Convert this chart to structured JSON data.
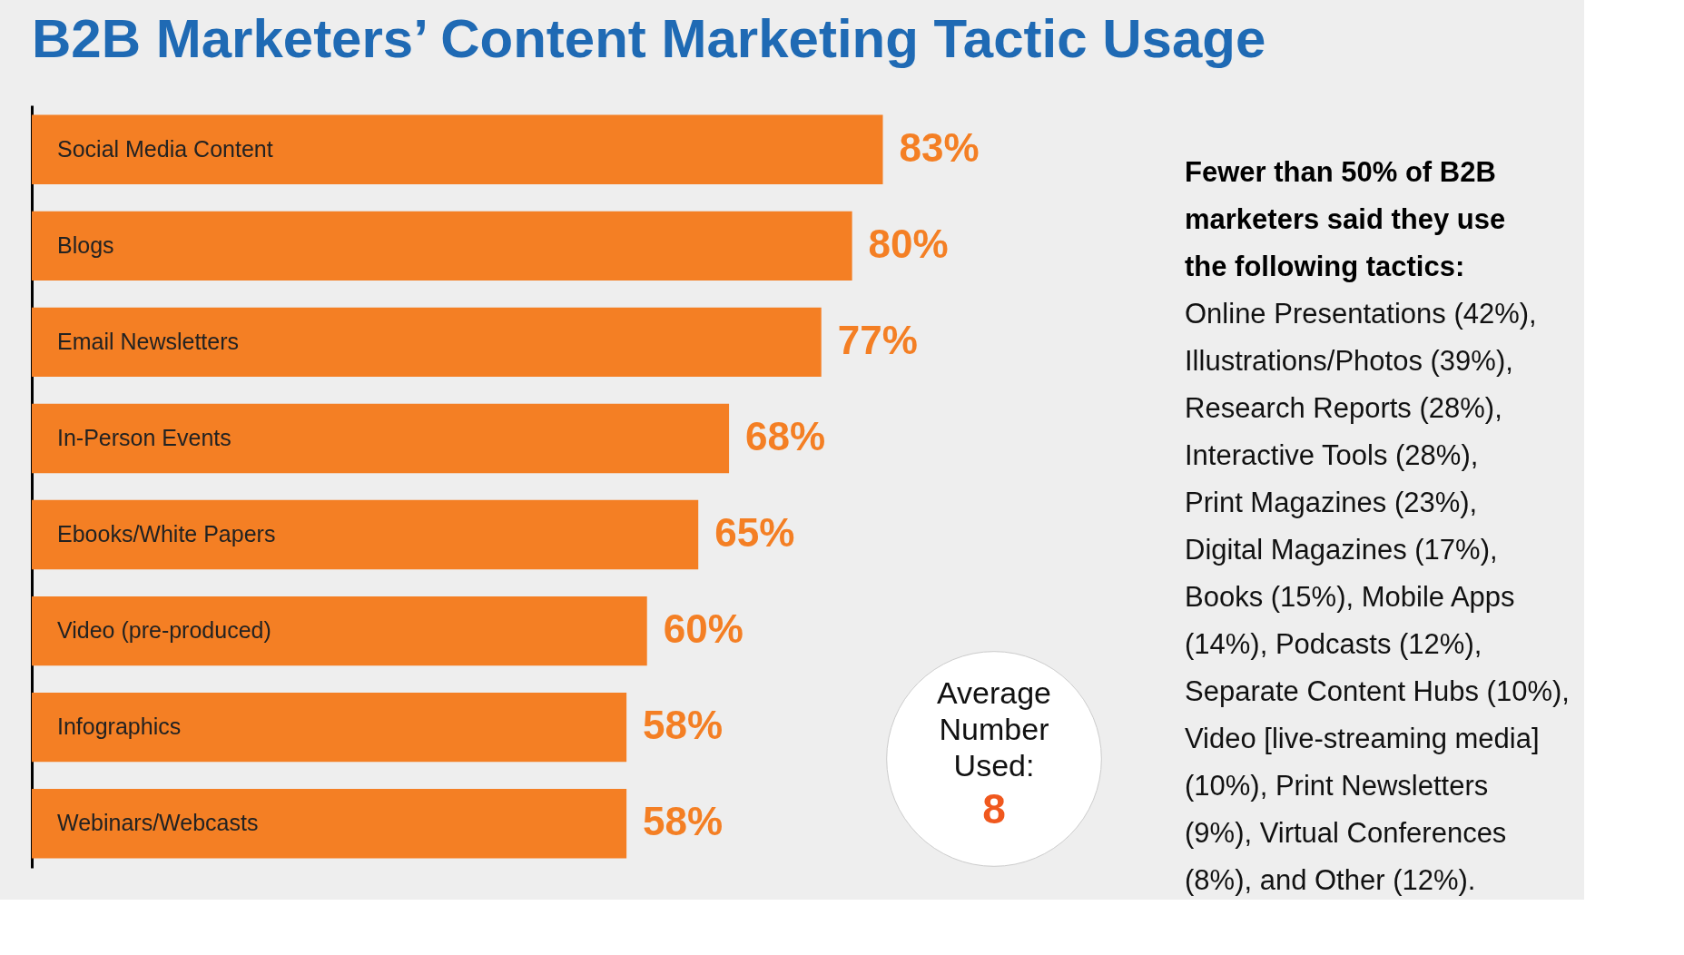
{
  "chart_data": {
    "type": "bar",
    "orientation": "horizontal",
    "title": "B2B Marketers’ Content Marketing Tactic Usage",
    "categories": [
      "Social Media Content",
      "Blogs",
      "Email Newsletters",
      "In-Person Events",
      "Ebooks/White Papers",
      "Video (pre-produced)",
      "Infographics",
      "Webinars/Webcasts"
    ],
    "values": [
      83,
      80,
      77,
      68,
      65,
      60,
      58,
      58
    ],
    "value_labels": [
      "83%",
      "80%",
      "77%",
      "68%",
      "65%",
      "60%",
      "58%",
      "58%"
    ],
    "color": "#f47f24",
    "annotations": [
      "Average Number Used:",
      "8",
      "Fewer than 50% of B2B marketers said they use the following tactics:",
      "Online Presentations (42%), Illustrations/Photos (39%), Research Reports (28%), Interactive Tools (28%), Print Magazines (23%), Digital Magazines (17%), Books (15%), Mobile Apps (14%), Podcasts (12%), Separate Content Hubs (10%), Video [live-streaming media] (10%), Print Newsletters (9%), Virtual Conferences (8%), and Other (12%)."
    ],
    "grid": false
  }
}
